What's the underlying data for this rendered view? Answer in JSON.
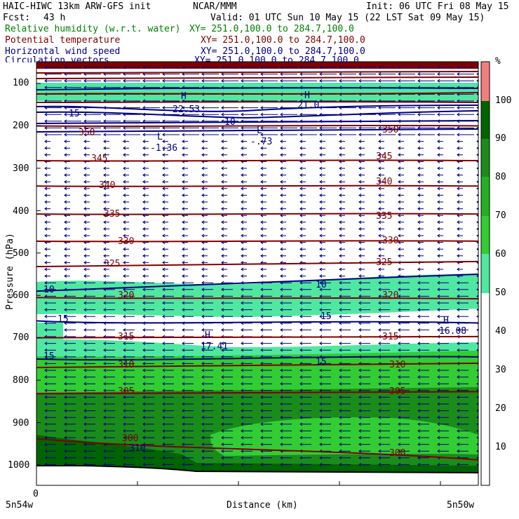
{
  "header": {
    "model": "HAIC-HIWC 13km ARW-GFS init",
    "org": "NCAR/MMM",
    "init": "Init: 06 UTC Fri 08 May 15",
    "fcst_label": "Fcst:",
    "fcst_value": "43 h",
    "valid": "Valid: 01 UTC Sun 10 May 15 (22 LST Sat 09 May 15)"
  },
  "fields": [
    {
      "name": "Relative humidity (w.r.t. water)",
      "xy": "XY= 251.0,100.0 to 284.7,100.0",
      "color": "#008000"
    },
    {
      "name": "Potential temperature",
      "xy": "XY= 251.0,100.0 to 284.7,100.0",
      "color": "#800000"
    },
    {
      "name": "Horizontal wind speed",
      "xy": "XY= 251.0,100.0 to 284.7,100.0",
      "color": "#000080"
    },
    {
      "name": "Circulation vectors",
      "xy": "XY= 251.0,100.0 to 284.7,100.0",
      "color": "#000080"
    }
  ],
  "axes": {
    "ylabel": "Pressure (hPa)",
    "xlabel": "Distance (km)",
    "x_start_label": "5n54w",
    "x_end_label": "5n50w",
    "x_zero": "0",
    "pressure_ticks": [
      "100",
      "200",
      "300",
      "400",
      "500",
      "600",
      "700",
      "800",
      "900",
      "1000"
    ]
  },
  "colorbar": {
    "unit": "%",
    "labels": [
      "100",
      "90",
      "80",
      "70",
      "60",
      "50",
      "40",
      "30",
      "20",
      "10"
    ],
    "colors": [
      "#f08080",
      "#006400",
      "#1a8c1a",
      "#22b022",
      "#32cd32",
      "#5fe35f",
      "#50e8a0"
    ]
  },
  "chart_data": {
    "type": "heatmap",
    "title": "HAIC-HIWC 13km ARW-GFS init",
    "xlabel": "Distance (km)",
    "ylabel": "Pressure (hPa)",
    "ylim": [
      1050,
      40
    ],
    "y_scale": "log",
    "theta_contours": [
      {
        "value": 350,
        "left": 200,
        "right": 200
      },
      {
        "value": 345,
        "left": 282,
        "right": 282
      },
      {
        "value": 340,
        "left": 342,
        "right": 342
      },
      {
        "value": 335,
        "left": 408,
        "right": 408
      },
      {
        "value": 330,
        "left": 472,
        "right": 472
      },
      {
        "value": 325,
        "left": 532,
        "right": 520
      },
      {
        "value": 320,
        "left": 605,
        "right": 608
      },
      {
        "value": 315,
        "left": 700,
        "right": 697
      },
      {
        "value": 310,
        "left": 770,
        "right": 760
      },
      {
        "value": 305,
        "left": 832,
        "right": 827
      },
      {
        "value": 300,
        "left": 938,
        "right": 988
      }
    ],
    "wind_contours": [
      {
        "value": 10,
        "left": 590,
        "right": 550
      },
      {
        "value": 15,
        "left": 660,
        "right": 665
      },
      {
        "value": 15,
        "left": 750,
        "right": 745
      }
    ],
    "extrema": [
      {
        "type": "H",
        "value": "17.41",
        "field": "wind"
      },
      {
        "type": "H",
        "value": "16.08",
        "field": "wind"
      },
      {
        "type": "L",
        "value": "-1.36",
        "field": "vertical"
      },
      {
        "type": "L",
        "value": "-.73",
        "field": "vertical"
      },
      {
        "type": "H",
        "value": "22.53",
        "field": "wind"
      },
      {
        "type": "H",
        "value": "21.0",
        "field": "wind"
      }
    ],
    "contour_labels": [
      "350",
      "345",
      "340",
      "335",
      "330",
      "325",
      "320",
      "315",
      "310",
      "305",
      "300",
      "10",
      "15",
      "20",
      "310",
      "300"
    ],
    "rh_bands": [
      {
        "range": "50-60",
        "p_top": 570,
        "p_bottom": 650
      },
      {
        "range": "50-60",
        "p_top": 700,
        "p_bottom": 780
      },
      {
        "range": "70-90",
        "p_top": 780,
        "p_bottom": 1030
      }
    ]
  }
}
